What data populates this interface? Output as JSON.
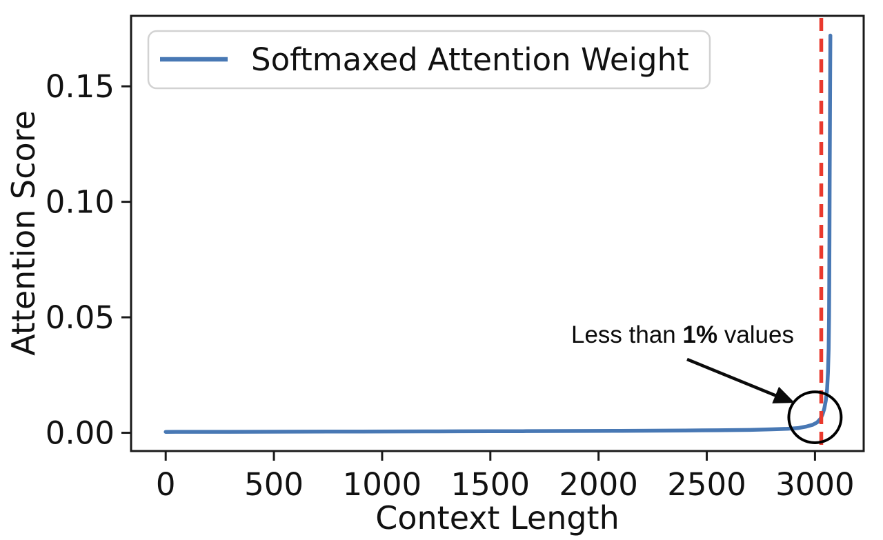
{
  "figure": {
    "background": "#ffffff"
  },
  "chart_data": {
    "type": "line",
    "title": "",
    "xlabel": "Context Length",
    "ylabel": "Attention Score",
    "xlim": [
      -160,
      3225
    ],
    "ylim": [
      -0.0079,
      0.1805
    ],
    "x_ticks": [
      0,
      500,
      1000,
      1500,
      2000,
      2500,
      3000
    ],
    "y_ticks": [
      0,
      0.05,
      0.1,
      0.15
    ],
    "y_tick_labels": [
      "0.00",
      "0.05",
      "0.10",
      "0.15"
    ],
    "grid": false,
    "legend": {
      "position": "upper-left",
      "entries": [
        {
          "label": "Softmaxed Attention Weight",
          "color": "#4878b4"
        }
      ]
    },
    "series": [
      {
        "name": "Softmaxed Attention Weight",
        "color": "#4878b4",
        "points": [
          [
            0,
            0.0004
          ],
          [
            150,
            0.00042
          ],
          [
            300,
            0.00044
          ],
          [
            450,
            0.00046
          ],
          [
            600,
            0.0005
          ],
          [
            750,
            0.00052
          ],
          [
            900,
            0.00055
          ],
          [
            1050,
            0.00058
          ],
          [
            1200,
            0.0006
          ],
          [
            1350,
            0.00063
          ],
          [
            1500,
            0.00066
          ],
          [
            1650,
            0.0007
          ],
          [
            1800,
            0.00075
          ],
          [
            1950,
            0.0008
          ],
          [
            2100,
            0.00085
          ],
          [
            2250,
            0.0009
          ],
          [
            2400,
            0.001
          ],
          [
            2550,
            0.0011
          ],
          [
            2700,
            0.00125
          ],
          [
            2800,
            0.0015
          ],
          [
            2870,
            0.0017
          ],
          [
            2920,
            0.002
          ],
          [
            2960,
            0.0027
          ],
          [
            2990,
            0.0035
          ],
          [
            3010,
            0.0045
          ],
          [
            3025,
            0.006
          ],
          [
            3035,
            0.008
          ],
          [
            3043,
            0.0105
          ],
          [
            3050,
            0.014
          ],
          [
            3056,
            0.019
          ],
          [
            3060,
            0.026
          ],
          [
            3063,
            0.036
          ],
          [
            3065,
            0.05
          ],
          [
            3066,
            0.065
          ],
          [
            3067,
            0.085
          ],
          [
            3068,
            0.11
          ],
          [
            3069,
            0.135
          ],
          [
            3070,
            0.155
          ],
          [
            3071,
            0.172
          ]
        ]
      }
    ],
    "vline": {
      "x": 3029,
      "color": "#e9392d",
      "style": "dashed"
    },
    "annotation": {
      "text_prefix": "Less than ",
      "text_bold": "1%",
      "text_suffix": " values",
      "circle": {
        "x": 3000,
        "y": 0.0067,
        "rx": 121,
        "ry": 0.011
      }
    }
  }
}
